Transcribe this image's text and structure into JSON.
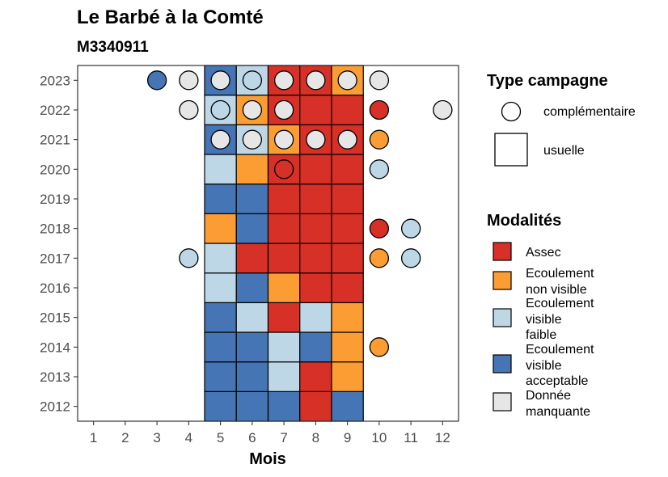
{
  "chart_data": {
    "type": "heatmap",
    "title": "Le Barbé à la Comté",
    "subtitle": "M3340911",
    "xlabel": "Mois",
    "ylabel": "",
    "x_ticks": [
      1,
      2,
      3,
      4,
      5,
      6,
      7,
      8,
      9,
      10,
      11,
      12
    ],
    "y_ticks": [
      2012,
      2013,
      2014,
      2015,
      2016,
      2017,
      2018,
      2019,
      2020,
      2021,
      2022,
      2023
    ],
    "xlim": [
      0.5,
      12.5
    ],
    "ylim": [
      2011.5,
      2023.5
    ],
    "colors": {
      "Assec": "#d73027",
      "Ecoulement non visible": "#fc9d33",
      "Ecoulement visible faible": "#bdd7e7",
      "Ecoulement visible acceptable": "#4575b4",
      "Donnée manquante": "#e6e6e6"
    },
    "usuelle": [
      {
        "year": 2012,
        "month": 5,
        "modalite": "Ecoulement visible acceptable"
      },
      {
        "year": 2012,
        "month": 6,
        "modalite": "Ecoulement visible acceptable"
      },
      {
        "year": 2012,
        "month": 7,
        "modalite": "Ecoulement visible acceptable"
      },
      {
        "year": 2012,
        "month": 8,
        "modalite": "Assec"
      },
      {
        "year": 2012,
        "month": 9,
        "modalite": "Ecoulement visible acceptable"
      },
      {
        "year": 2013,
        "month": 5,
        "modalite": "Ecoulement visible acceptable"
      },
      {
        "year": 2013,
        "month": 6,
        "modalite": "Ecoulement visible acceptable"
      },
      {
        "year": 2013,
        "month": 7,
        "modalite": "Ecoulement visible faible"
      },
      {
        "year": 2013,
        "month": 8,
        "modalite": "Assec"
      },
      {
        "year": 2013,
        "month": 9,
        "modalite": "Ecoulement non visible"
      },
      {
        "year": 2014,
        "month": 5,
        "modalite": "Ecoulement visible acceptable"
      },
      {
        "year": 2014,
        "month": 6,
        "modalite": "Ecoulement visible acceptable"
      },
      {
        "year": 2014,
        "month": 7,
        "modalite": "Ecoulement visible faible"
      },
      {
        "year": 2014,
        "month": 8,
        "modalite": "Ecoulement visible acceptable"
      },
      {
        "year": 2014,
        "month": 9,
        "modalite": "Ecoulement non visible"
      },
      {
        "year": 2015,
        "month": 5,
        "modalite": "Ecoulement visible acceptable"
      },
      {
        "year": 2015,
        "month": 6,
        "modalite": "Ecoulement visible faible"
      },
      {
        "year": 2015,
        "month": 7,
        "modalite": "Assec"
      },
      {
        "year": 2015,
        "month": 8,
        "modalite": "Ecoulement visible faible"
      },
      {
        "year": 2015,
        "month": 9,
        "modalite": "Ecoulement non visible"
      },
      {
        "year": 2016,
        "month": 5,
        "modalite": "Ecoulement visible faible"
      },
      {
        "year": 2016,
        "month": 6,
        "modalite": "Ecoulement visible acceptable"
      },
      {
        "year": 2016,
        "month": 7,
        "modalite": "Ecoulement non visible"
      },
      {
        "year": 2016,
        "month": 8,
        "modalite": "Assec"
      },
      {
        "year": 2016,
        "month": 9,
        "modalite": "Assec"
      },
      {
        "year": 2017,
        "month": 5,
        "modalite": "Ecoulement visible faible"
      },
      {
        "year": 2017,
        "month": 6,
        "modalite": "Assec"
      },
      {
        "year": 2017,
        "month": 7,
        "modalite": "Assec"
      },
      {
        "year": 2017,
        "month": 8,
        "modalite": "Assec"
      },
      {
        "year": 2017,
        "month": 9,
        "modalite": "Assec"
      },
      {
        "year": 2018,
        "month": 5,
        "modalite": "Ecoulement non visible"
      },
      {
        "year": 2018,
        "month": 6,
        "modalite": "Ecoulement visible acceptable"
      },
      {
        "year": 2018,
        "month": 7,
        "modalite": "Assec"
      },
      {
        "year": 2018,
        "month": 8,
        "modalite": "Assec"
      },
      {
        "year": 2018,
        "month": 9,
        "modalite": "Assec"
      },
      {
        "year": 2019,
        "month": 5,
        "modalite": "Ecoulement visible acceptable"
      },
      {
        "year": 2019,
        "month": 6,
        "modalite": "Ecoulement visible acceptable"
      },
      {
        "year": 2019,
        "month": 7,
        "modalite": "Assec"
      },
      {
        "year": 2019,
        "month": 8,
        "modalite": "Assec"
      },
      {
        "year": 2019,
        "month": 9,
        "modalite": "Assec"
      },
      {
        "year": 2020,
        "month": 5,
        "modalite": "Ecoulement visible faible"
      },
      {
        "year": 2020,
        "month": 6,
        "modalite": "Ecoulement non visible"
      },
      {
        "year": 2020,
        "month": 7,
        "modalite": "Assec"
      },
      {
        "year": 2020,
        "month": 8,
        "modalite": "Assec"
      },
      {
        "year": 2020,
        "month": 9,
        "modalite": "Assec"
      },
      {
        "year": 2021,
        "month": 5,
        "modalite": "Ecoulement visible acceptable"
      },
      {
        "year": 2021,
        "month": 6,
        "modalite": "Ecoulement visible faible"
      },
      {
        "year": 2021,
        "month": 7,
        "modalite": "Ecoulement non visible"
      },
      {
        "year": 2021,
        "month": 8,
        "modalite": "Assec"
      },
      {
        "year": 2021,
        "month": 9,
        "modalite": "Assec"
      },
      {
        "year": 2022,
        "month": 5,
        "modalite": "Ecoulement visible faible"
      },
      {
        "year": 2022,
        "month": 6,
        "modalite": "Ecoulement non visible"
      },
      {
        "year": 2022,
        "month": 7,
        "modalite": "Assec"
      },
      {
        "year": 2022,
        "month": 8,
        "modalite": "Assec"
      },
      {
        "year": 2022,
        "month": 9,
        "modalite": "Assec"
      },
      {
        "year": 2023,
        "month": 5,
        "modalite": "Ecoulement visible acceptable"
      },
      {
        "year": 2023,
        "month": 6,
        "modalite": "Ecoulement visible faible"
      },
      {
        "year": 2023,
        "month": 7,
        "modalite": "Assec"
      },
      {
        "year": 2023,
        "month": 8,
        "modalite": "Assec"
      },
      {
        "year": 2023,
        "month": 9,
        "modalite": "Ecoulement non visible"
      }
    ],
    "complementaire": [
      {
        "year": 2023,
        "month": 3,
        "modalite": "Ecoulement visible acceptable"
      },
      {
        "year": 2023,
        "month": 4,
        "modalite": "Donnée manquante"
      },
      {
        "year": 2023,
        "month": 5,
        "modalite": "Donnée manquante"
      },
      {
        "year": 2023,
        "month": 6,
        "modalite": "Ecoulement visible faible"
      },
      {
        "year": 2023,
        "month": 7,
        "modalite": "Donnée manquante"
      },
      {
        "year": 2023,
        "month": 8,
        "modalite": "Donnée manquante"
      },
      {
        "year": 2023,
        "month": 9,
        "modalite": "Donnée manquante"
      },
      {
        "year": 2023,
        "month": 10,
        "modalite": "Donnée manquante"
      },
      {
        "year": 2022,
        "month": 4,
        "modalite": "Donnée manquante"
      },
      {
        "year": 2022,
        "month": 5,
        "modalite": "Ecoulement visible faible"
      },
      {
        "year": 2022,
        "month": 6,
        "modalite": "Donnée manquante"
      },
      {
        "year": 2022,
        "month": 7,
        "modalite": "Donnée manquante"
      },
      {
        "year": 2022,
        "month": 10,
        "modalite": "Assec"
      },
      {
        "year": 2022,
        "month": 12,
        "modalite": "Donnée manquante"
      },
      {
        "year": 2021,
        "month": 5,
        "modalite": "Donnée manquante"
      },
      {
        "year": 2021,
        "month": 6,
        "modalite": "Donnée manquante"
      },
      {
        "year": 2021,
        "month": 7,
        "modalite": "Donnée manquante"
      },
      {
        "year": 2021,
        "month": 8,
        "modalite": "Donnée manquante"
      },
      {
        "year": 2021,
        "month": 9,
        "modalite": "Donnée manquante"
      },
      {
        "year": 2021,
        "month": 10,
        "modalite": "Ecoulement non visible"
      },
      {
        "year": 2020,
        "month": 7,
        "modalite": "Assec"
      },
      {
        "year": 2020,
        "month": 10,
        "modalite": "Ecoulement visible faible"
      },
      {
        "year": 2018,
        "month": 10,
        "modalite": "Assec"
      },
      {
        "year": 2018,
        "month": 11,
        "modalite": "Ecoulement visible faible"
      },
      {
        "year": 2017,
        "month": 4,
        "modalite": "Ecoulement visible faible"
      },
      {
        "year": 2017,
        "month": 10,
        "modalite": "Ecoulement non visible"
      },
      {
        "year": 2017,
        "month": 11,
        "modalite": "Ecoulement visible faible"
      },
      {
        "year": 2014,
        "month": 10,
        "modalite": "Ecoulement non visible"
      }
    ],
    "legend_campagne": {
      "title": "Type campagne",
      "items": [
        "complémentaire",
        "usuelle"
      ]
    },
    "legend_modalites": {
      "title": "Modalités",
      "items": [
        {
          "key": "Assec",
          "lines": [
            "Assec"
          ]
        },
        {
          "key": "Ecoulement non visible",
          "lines": [
            "Ecoulement",
            "non visible"
          ]
        },
        {
          "key": "Ecoulement visible faible",
          "lines": [
            "Ecoulement",
            "visible",
            "faible"
          ]
        },
        {
          "key": "Ecoulement visible acceptable",
          "lines": [
            "Ecoulement",
            "visible",
            "acceptable"
          ]
        },
        {
          "key": "Donnée manquante",
          "lines": [
            "Donnée",
            "manquante"
          ]
        }
      ]
    }
  }
}
